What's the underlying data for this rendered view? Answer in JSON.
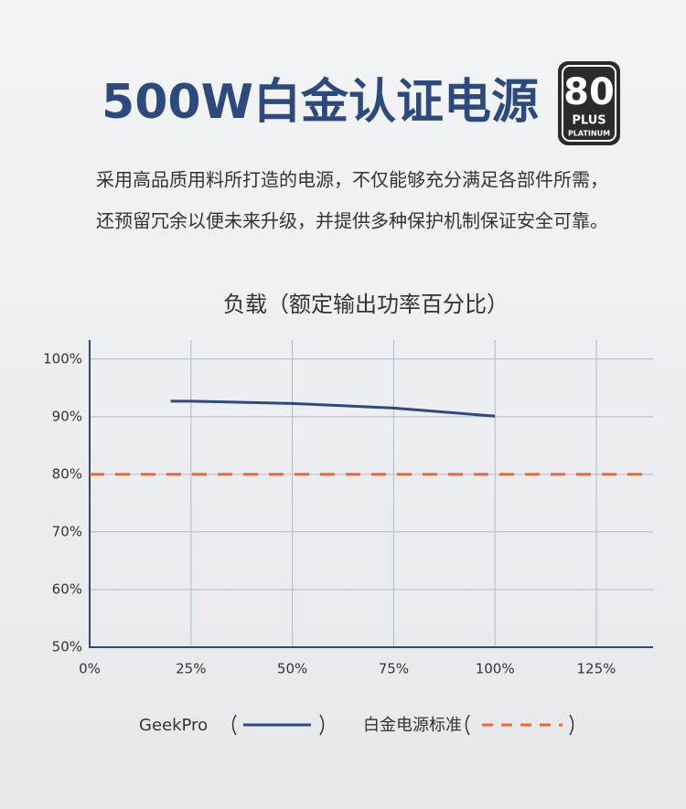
{
  "header": {
    "title": "500W白金认证电源",
    "badge": {
      "number": "80",
      "brand": "PLUS",
      "tier": "PLATINUM"
    },
    "description": [
      "采用高品质用料所打造的电源，不仅能够充分满足各部件所需，",
      "还预留冗余以便未来升级，并提供多种保护机制保证安全可靠。"
    ]
  },
  "chart_data": {
    "type": "line",
    "title": "负载（额定输出功率百分比）",
    "xlim": [
      0,
      139
    ],
    "ylim": [
      50,
      103.3
    ],
    "xticks": [
      {
        "value": 0,
        "label": "0%"
      },
      {
        "value": 25,
        "label": "25%"
      },
      {
        "value": 50,
        "label": "50%"
      },
      {
        "value": 75,
        "label": "75%"
      },
      {
        "value": 100,
        "label": "100%"
      },
      {
        "value": 125,
        "label": "125%"
      }
    ],
    "yticks": [
      {
        "value": 50,
        "label": "50%"
      },
      {
        "value": 60,
        "label": "60%"
      },
      {
        "value": 70,
        "label": "70%"
      },
      {
        "value": 80,
        "label": "80%"
      },
      {
        "value": 90,
        "label": "90%"
      },
      {
        "value": 100,
        "label": "100%"
      }
    ],
    "grid": true,
    "series": [
      {
        "name": "GeekPro",
        "color": "#2e4a7d",
        "dashed": false,
        "x": [
          20,
          25,
          50,
          75,
          100
        ],
        "values": [
          92.7,
          92.7,
          92.3,
          91.5,
          90.1
        ]
      },
      {
        "name": "白金电源标准",
        "color": "#e8683a",
        "dashed": true,
        "x": [
          0,
          139
        ],
        "values": [
          80,
          80
        ]
      }
    ]
  }
}
